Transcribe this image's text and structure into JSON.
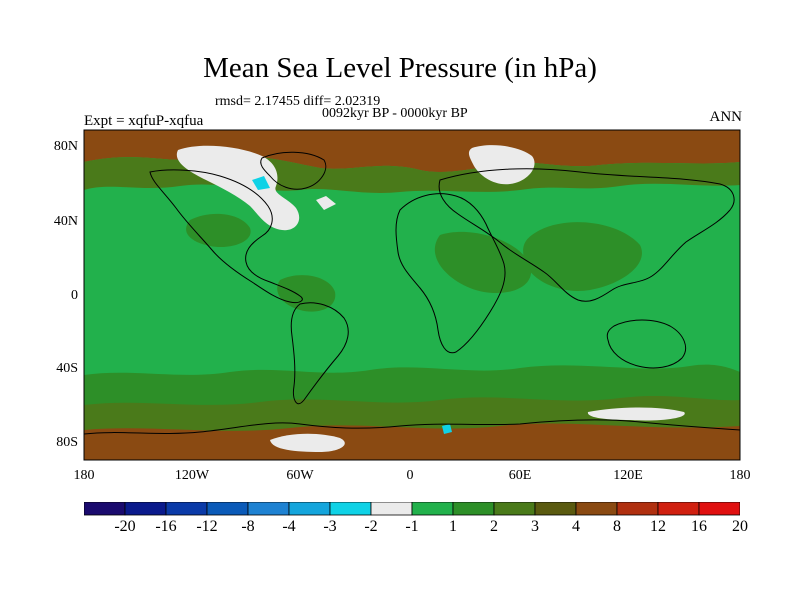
{
  "title": "Mean Sea Level Pressure (in hPa)",
  "stats": "rmsd= 2.17455 diff= 2.02319",
  "period": "0092kyr BP - 0000kyr BP",
  "experiment": "Expt = xqfuP-xqfua",
  "season": "ANN",
  "lat_labels": [
    "80N",
    "40N",
    "0",
    "40S",
    "80S"
  ],
  "lon_labels": [
    "180",
    "120W",
    "60W",
    "0",
    "60E",
    "120E",
    "180"
  ],
  "colorbar": {
    "labels": [
      "-20",
      "-16",
      "-12",
      "-8",
      "-4",
      "-3",
      "-2",
      "-1",
      "1",
      "2",
      "3",
      "4",
      "8",
      "12",
      "16",
      "20"
    ],
    "colors": [
      "#1a0a6e",
      "#0a1a8c",
      "#0a3aa8",
      "#0a5ab8",
      "#1e82d2",
      "#14a5dc",
      "#0fd2e6",
      "#ebebeb",
      "#22b14c",
      "#2d8f28",
      "#4a7a1a",
      "#5a5a10",
      "#8a4a12",
      "#b03010",
      "#d02010",
      "#e01010"
    ]
  },
  "field_colors": {
    "base": "#22b14c",
    "positive_2": "#2d8f28",
    "positive_3": "#4a7a1a",
    "positive_8": "#8a4a12",
    "near_zero": "#ebebeb",
    "negative_2": "#0fd2e6"
  }
}
